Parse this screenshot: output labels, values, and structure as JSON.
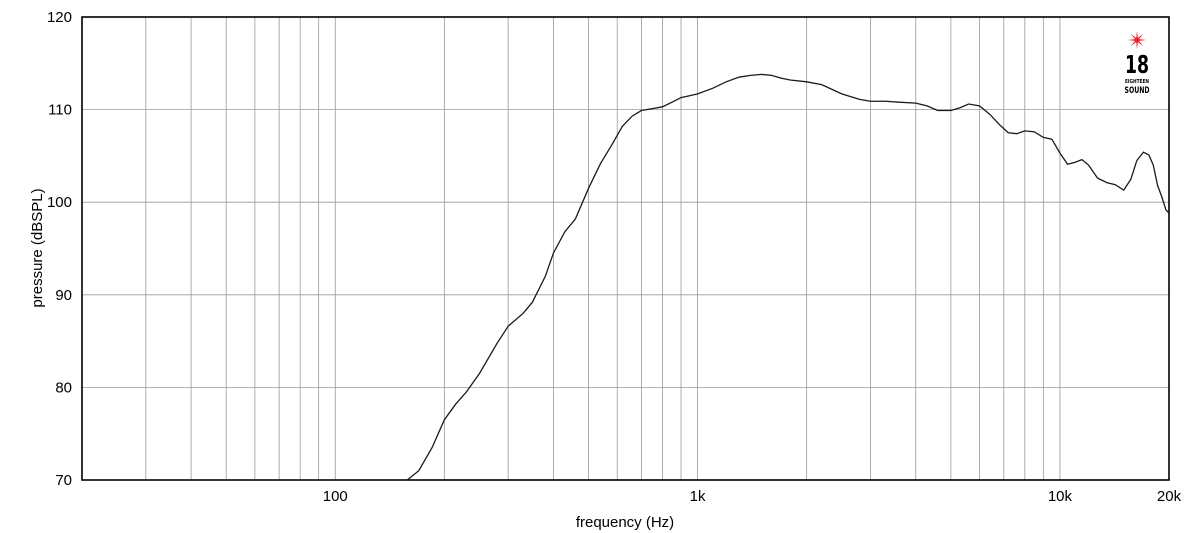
{
  "chart_data": {
    "type": "line",
    "title": "",
    "xlabel": "frequency (Hz)",
    "ylabel": "pressure (dBSPL)",
    "x_scale": "log",
    "xlim": [
      20,
      20000
    ],
    "ylim": [
      70,
      120
    ],
    "grid": true,
    "x_tick_labels": [
      {
        "value": 100,
        "label": "100"
      },
      {
        "value": 1000,
        "label": "1k"
      },
      {
        "value": 10000,
        "label": "10k"
      },
      {
        "value": 20000,
        "label": "20k"
      }
    ],
    "y_ticks": [
      70,
      80,
      90,
      100,
      110,
      120
    ],
    "series": [
      {
        "color": "#1a1a1a",
        "points": [
          [
            158,
            70.0
          ],
          [
            170,
            71.0
          ],
          [
            185,
            73.5
          ],
          [
            200,
            76.5
          ],
          [
            215,
            78.2
          ],
          [
            230,
            79.5
          ],
          [
            250,
            81.5
          ],
          [
            280,
            84.8
          ],
          [
            300,
            86.6
          ],
          [
            330,
            88.0
          ],
          [
            350,
            89.2
          ],
          [
            380,
            92.0
          ],
          [
            400,
            94.5
          ],
          [
            430,
            96.8
          ],
          [
            460,
            98.2
          ],
          [
            500,
            101.5
          ],
          [
            540,
            104.2
          ],
          [
            580,
            106.2
          ],
          [
            620,
            108.2
          ],
          [
            660,
            109.3
          ],
          [
            700,
            109.9
          ],
          [
            750,
            110.1
          ],
          [
            800,
            110.3
          ],
          [
            850,
            110.8
          ],
          [
            900,
            111.3
          ],
          [
            950,
            111.5
          ],
          [
            1000,
            111.7
          ],
          [
            1100,
            112.3
          ],
          [
            1200,
            113.0
          ],
          [
            1300,
            113.5
          ],
          [
            1400,
            113.7
          ],
          [
            1500,
            113.8
          ],
          [
            1600,
            113.7
          ],
          [
            1700,
            113.4
          ],
          [
            1800,
            113.2
          ],
          [
            2000,
            113.0
          ],
          [
            2200,
            112.7
          ],
          [
            2500,
            111.7
          ],
          [
            2800,
            111.1
          ],
          [
            3000,
            110.9
          ],
          [
            3300,
            110.9
          ],
          [
            3600,
            110.8
          ],
          [
            4000,
            110.7
          ],
          [
            4300,
            110.4
          ],
          [
            4600,
            109.9
          ],
          [
            5000,
            109.9
          ],
          [
            5300,
            110.2
          ],
          [
            5600,
            110.6
          ],
          [
            6000,
            110.4
          ],
          [
            6400,
            109.5
          ],
          [
            6800,
            108.4
          ],
          [
            7200,
            107.5
          ],
          [
            7600,
            107.4
          ],
          [
            8000,
            107.7
          ],
          [
            8500,
            107.6
          ],
          [
            9000,
            107.0
          ],
          [
            9500,
            106.8
          ],
          [
            10000,
            105.3
          ],
          [
            10500,
            104.1
          ],
          [
            11000,
            104.3
          ],
          [
            11500,
            104.6
          ],
          [
            12000,
            104.0
          ],
          [
            12700,
            102.6
          ],
          [
            13500,
            102.1
          ],
          [
            14200,
            101.9
          ],
          [
            15000,
            101.3
          ],
          [
            15700,
            102.5
          ],
          [
            16300,
            104.5
          ],
          [
            17000,
            105.4
          ],
          [
            17600,
            105.1
          ],
          [
            18100,
            104.0
          ],
          [
            18600,
            101.8
          ],
          [
            19100,
            100.6
          ],
          [
            19600,
            99.2
          ],
          [
            20000,
            98.8
          ]
        ]
      }
    ]
  },
  "logo": {
    "number": "18",
    "line1": "EIGHTEEN",
    "line2": "SOUND",
    "star_color": "#e0242a"
  }
}
